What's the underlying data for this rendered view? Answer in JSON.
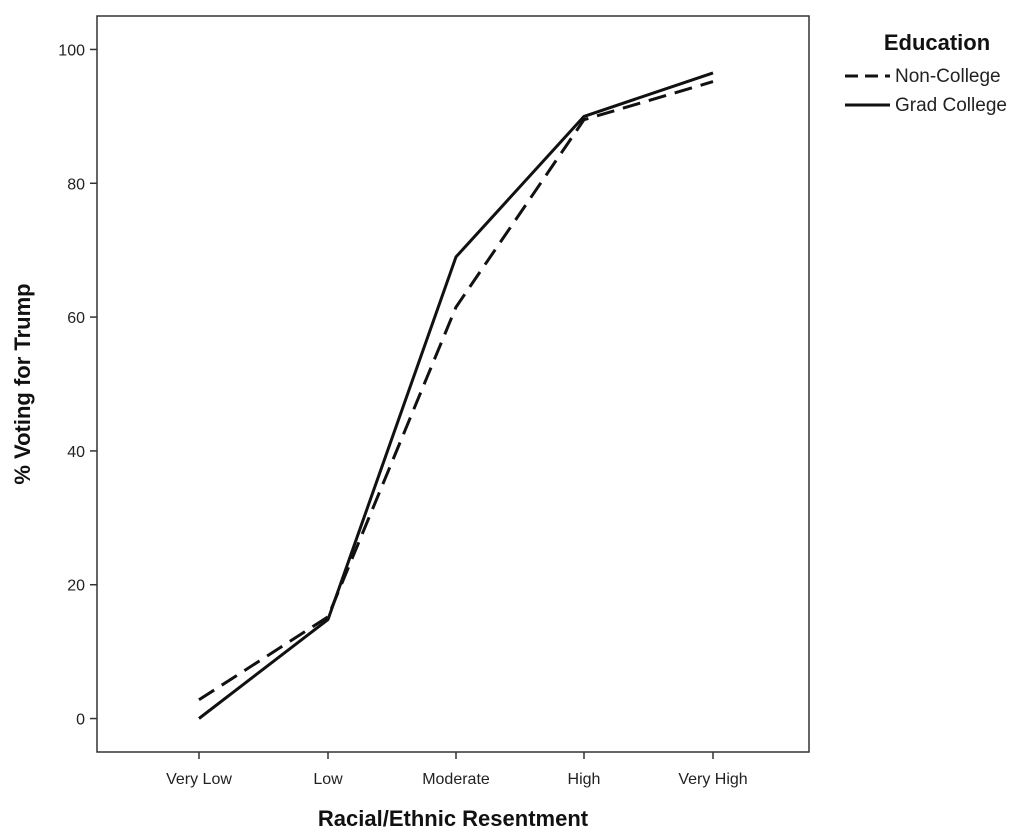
{
  "chart_data": {
    "type": "line",
    "title": "",
    "xlabel": "Racial/Ethnic Resentment",
    "ylabel": "% Voting for Trump",
    "categories": [
      "Very Low",
      "Low",
      "Moderate",
      "High",
      "Very High"
    ],
    "ylim": [
      -5,
      105
    ],
    "yticks": [
      0,
      20,
      40,
      60,
      80,
      100
    ],
    "grid": false,
    "legend": {
      "title": "Education",
      "placement": "right-top"
    },
    "series": [
      {
        "name": "Non-College",
        "values": [
          2.8,
          15.2,
          61.5,
          89.5,
          95.2
        ],
        "style": "dashed",
        "color": "#111111"
      },
      {
        "name": "Grad College",
        "values": [
          0,
          14.8,
          69,
          90,
          96.5
        ],
        "style": "solid",
        "color": "#111111"
      }
    ]
  }
}
